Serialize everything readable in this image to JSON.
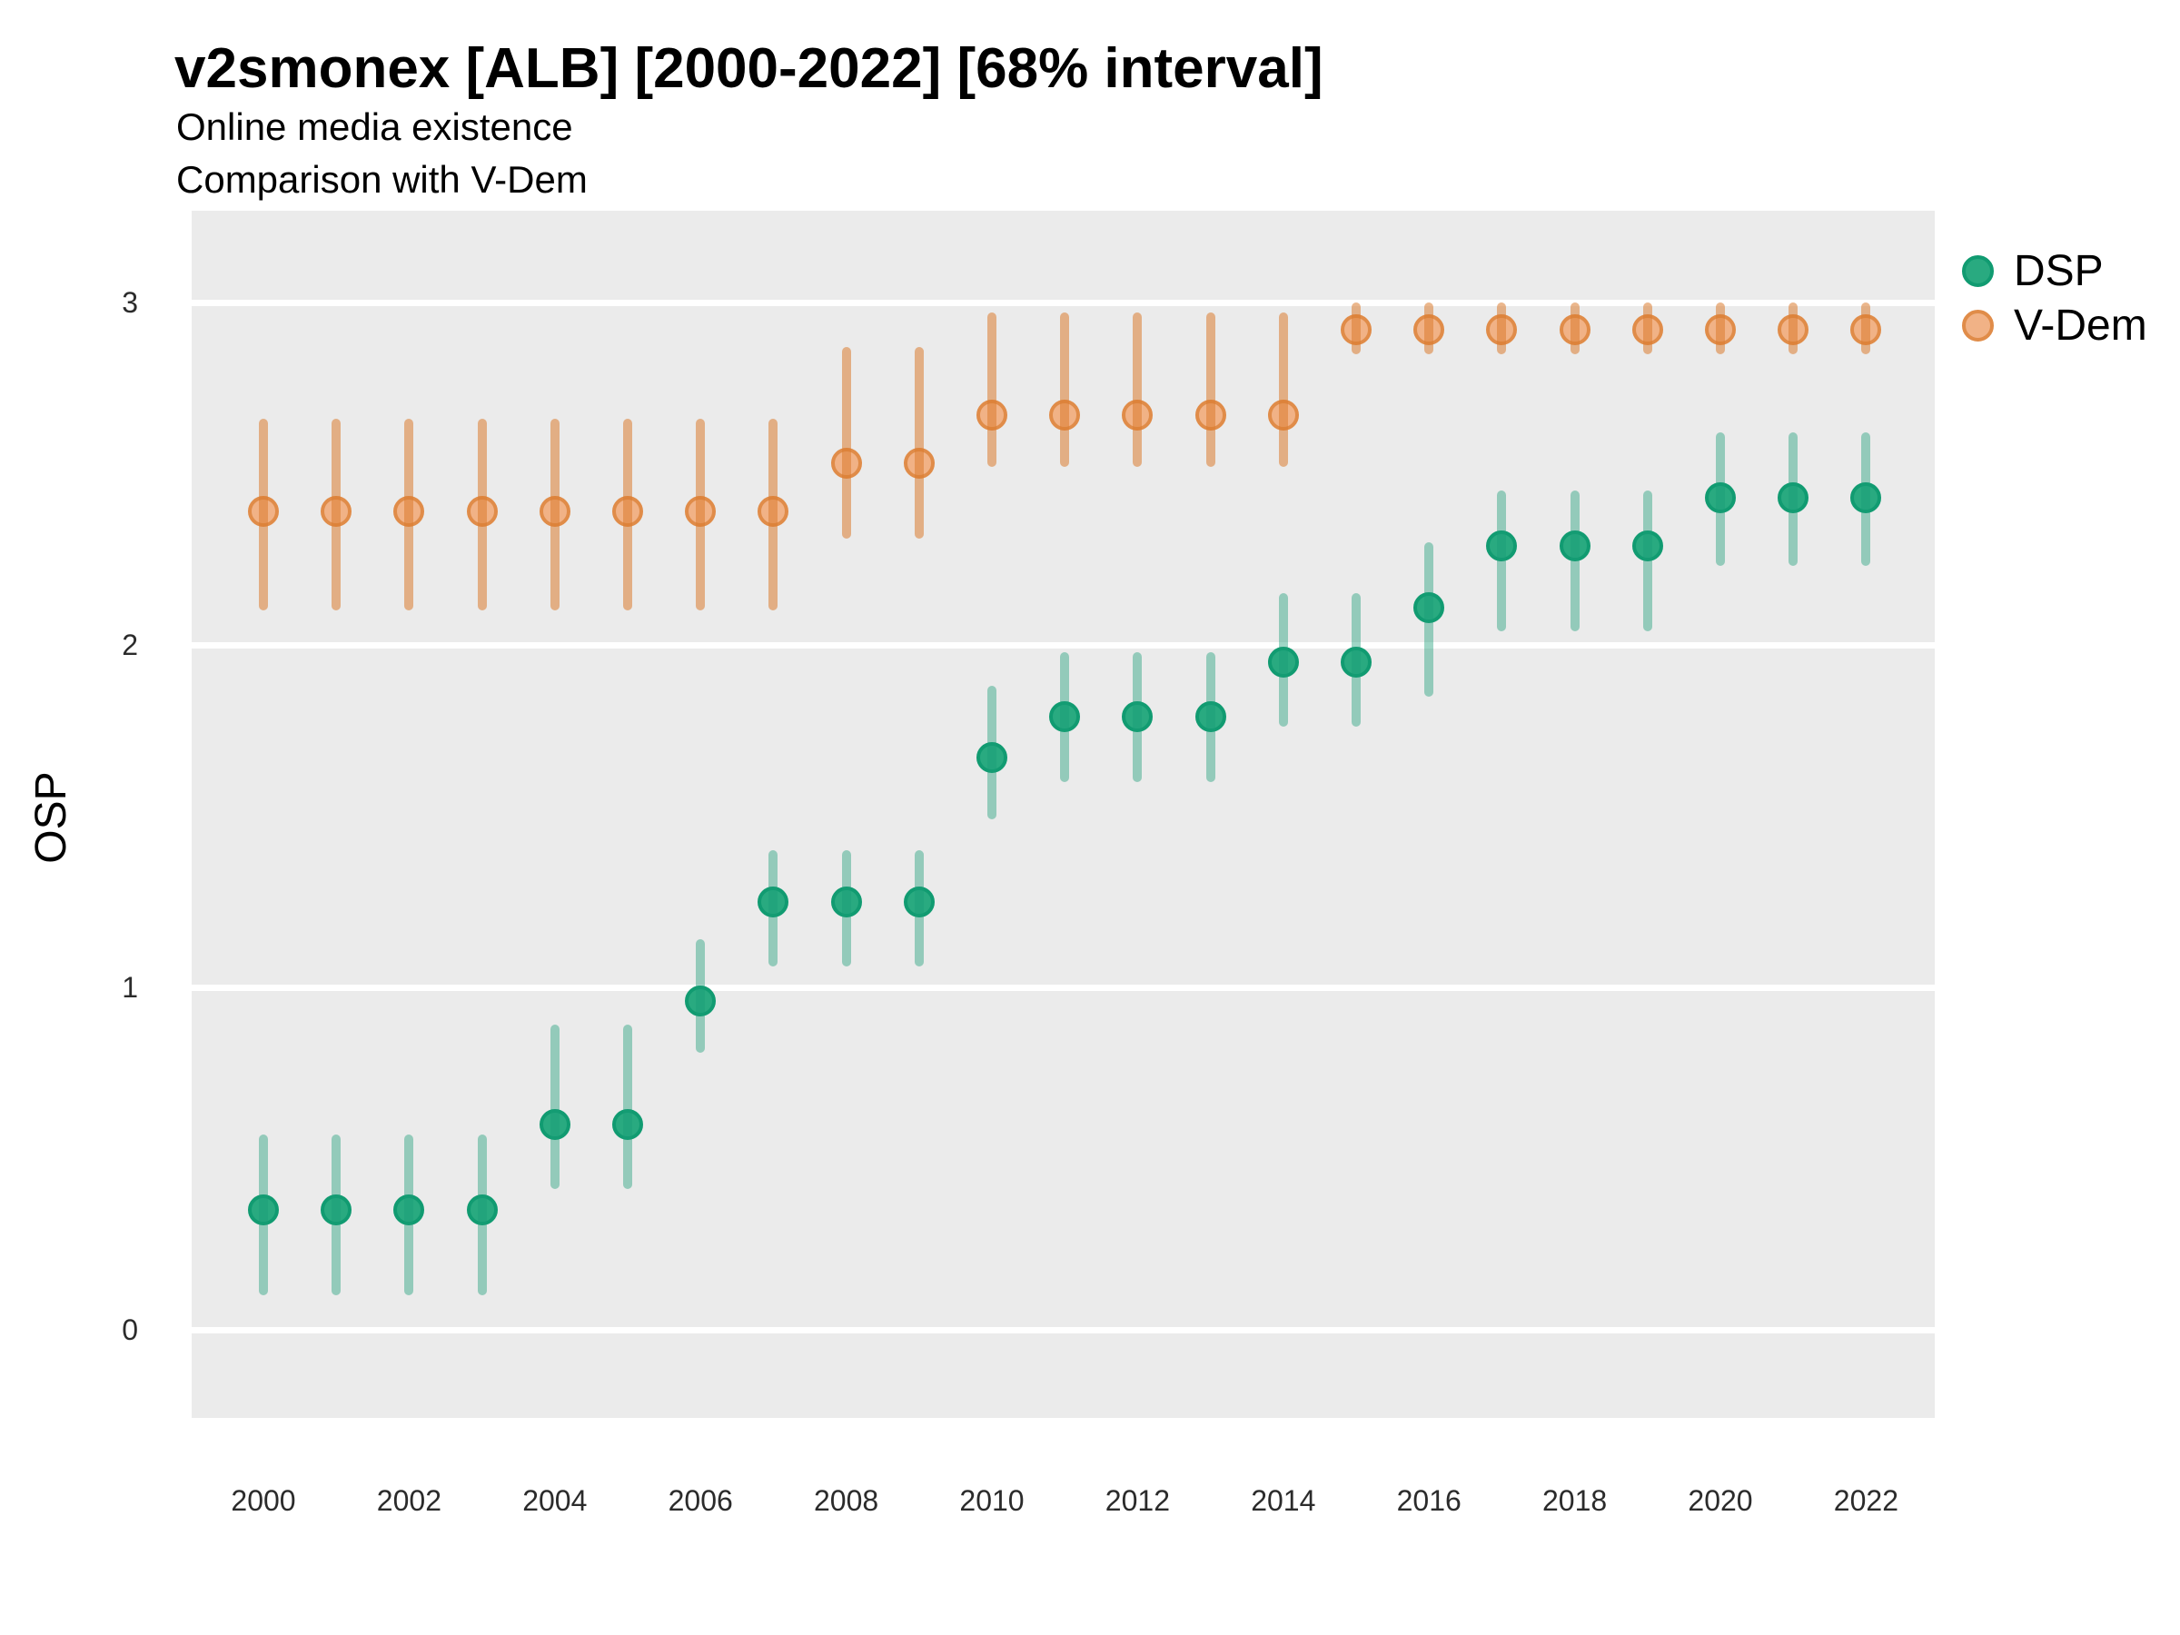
{
  "header": {
    "title": "v2smonex [ALB] [2000-2022] [68% interval]",
    "subtitle1": "Online media existence",
    "subtitle2": "Comparison with V-Dem"
  },
  "axes": {
    "y_label": "OSP",
    "y_ticks": [
      0,
      1,
      2,
      3
    ],
    "x_ticks": [
      2000,
      2002,
      2004,
      2006,
      2008,
      2010,
      2012,
      2014,
      2016,
      2018,
      2020,
      2022
    ]
  },
  "legend": {
    "items": [
      {
        "label": "DSP",
        "fill": "#29aa80",
        "ring": "#119b71"
      },
      {
        "label": "V-Dem",
        "fill": "#f1b286",
        "ring": "#e08c49"
      }
    ]
  },
  "colors": {
    "panel_bg": "#ebebeb",
    "gridline": "#ffffff",
    "dsp_point": "#29aa80",
    "dsp_ring": "#119b71",
    "dsp_bar": "rgba(27,158,119,0.42)",
    "vdem_point": "#f1b286",
    "vdem_ring": "#e08c49",
    "vdem_bar": "rgba(219,124,47,0.55)"
  },
  "chart_data": {
    "type": "scatter",
    "subtype": "pointrange",
    "interval": "68%",
    "title": "v2smonex [ALB] [2000-2022] [68% interval]",
    "subtitle": "Online media existence — Comparison with V-Dem",
    "xlabel": "",
    "ylabel": "OSP",
    "ylim": [
      -0.27,
      3.27
    ],
    "yticks": [
      0,
      1,
      2,
      3
    ],
    "xticks": [
      2000,
      2002,
      2004,
      2006,
      2008,
      2010,
      2012,
      2014,
      2016,
      2018,
      2020,
      2022
    ],
    "grid": "horizontal white lines on gray panel",
    "legend_position": "right",
    "x": [
      2000,
      2001,
      2002,
      2003,
      2004,
      2005,
      2006,
      2007,
      2008,
      2009,
      2010,
      2011,
      2012,
      2013,
      2014,
      2015,
      2016,
      2017,
      2018,
      2019,
      2020,
      2021,
      2022
    ],
    "series": [
      {
        "name": "DSP",
        "values": [
          0.35,
          0.35,
          0.35,
          0.35,
          0.6,
          0.6,
          0.96,
          1.25,
          1.25,
          1.25,
          1.67,
          1.79,
          1.79,
          1.79,
          1.95,
          1.95,
          2.11,
          2.29,
          2.29,
          2.29,
          2.43,
          2.43,
          2.43
        ],
        "lo": [
          0.1,
          0.1,
          0.1,
          0.1,
          0.41,
          0.41,
          0.81,
          1.06,
          1.06,
          1.06,
          1.49,
          1.6,
          1.6,
          1.6,
          1.76,
          1.76,
          1.85,
          2.04,
          2.04,
          2.04,
          2.23,
          2.23,
          2.23
        ],
        "hi": [
          0.57,
          0.57,
          0.57,
          0.57,
          0.89,
          0.89,
          1.14,
          1.4,
          1.4,
          1.4,
          1.88,
          1.98,
          1.98,
          1.98,
          2.15,
          2.15,
          2.3,
          2.45,
          2.45,
          2.45,
          2.62,
          2.62,
          2.62
        ]
      },
      {
        "name": "V-Dem",
        "values": [
          2.39,
          2.39,
          2.39,
          2.39,
          2.39,
          2.39,
          2.39,
          2.39,
          2.53,
          2.53,
          2.67,
          2.67,
          2.67,
          2.67,
          2.67,
          2.92,
          2.92,
          2.92,
          2.92,
          2.92,
          2.92,
          2.92,
          2.92
        ],
        "lo": [
          2.1,
          2.1,
          2.1,
          2.1,
          2.1,
          2.1,
          2.1,
          2.1,
          2.31,
          2.31,
          2.52,
          2.52,
          2.52,
          2.52,
          2.52,
          2.85,
          2.85,
          2.85,
          2.85,
          2.85,
          2.85,
          2.85,
          2.85
        ],
        "hi": [
          2.66,
          2.66,
          2.66,
          2.66,
          2.66,
          2.66,
          2.66,
          2.66,
          2.87,
          2.87,
          2.97,
          2.97,
          2.97,
          2.97,
          2.97,
          3.0,
          3.0,
          3.0,
          3.0,
          3.0,
          3.0,
          3.0,
          3.0
        ]
      }
    ]
  }
}
